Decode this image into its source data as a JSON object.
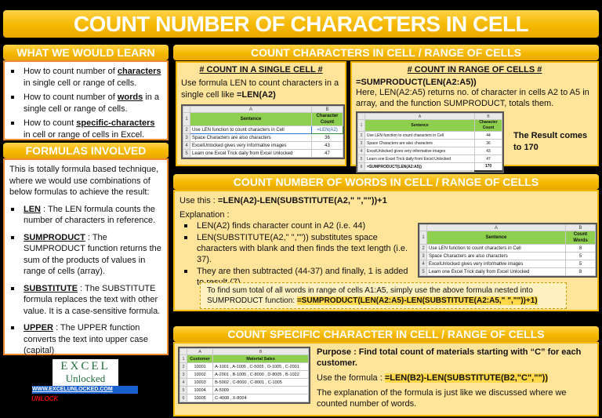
{
  "title": "COUNT NUMBER OF CHARACTERS IN CELL",
  "learn": {
    "header": "WHAT WE WOULD LEARN",
    "items": [
      {
        "pre": "How to count number of ",
        "key": "characters",
        "post": " in single cell or range of cells."
      },
      {
        "pre": "How to count number of ",
        "key": "words",
        "post": " in a single cell or range of cells."
      },
      {
        "pre": "How to count ",
        "key": "specific-characters",
        "post": " in cell or range of cells in Excel."
      }
    ]
  },
  "formulas": {
    "header": "FORMULAS INVOLVED",
    "intro": "This is totally formula based technique, where we would use combinations of below formulas to achieve the result:",
    "items": [
      {
        "key": "LEN",
        "desc": " : The LEN formula counts the number of characters in reference."
      },
      {
        "key": "SUMPRODUCT",
        "desc": " : The SUMPRODUCT function returns the sum of the products of values in range of cells (array)."
      },
      {
        "key": "SUBSTITUTE",
        "desc": " : The SUBSTITUTE formula replaces the text with other value. It is a case-sensitive formula."
      },
      {
        "key": "UPPER",
        "desc": " : The UPPER function converts the text into upper case (capital)"
      }
    ]
  },
  "logo": {
    "line1": "EXCEL",
    "line2": "Unlocked",
    "url": "WWW.EXCELUNLOCKED.COM",
    "tag": "UNLOCK"
  },
  "chars": {
    "header": "COUNT CHARACTERS IN CELL / RANGE OF CELLS",
    "single": {
      "title": "# COUNT IN A SINGLE CELL #",
      "text": "Use formula LEN to count characters in a single cell like ",
      "formula": "=LEN(A2)",
      "table": {
        "col_a": "A",
        "col_b": "B",
        "h_a": "Sentence",
        "h_b1": "Character",
        "h_b2": "Count",
        "rows": [
          {
            "n": "2",
            "a": "Use LEN function to count characters in Cell",
            "b": "=LEN(A2)"
          },
          {
            "n": "3",
            "a": "Space Characters are also characters",
            "b": "36"
          },
          {
            "n": "4",
            "a": "ExcelUnlocked gives very informative images",
            "b": "43"
          },
          {
            "n": "5",
            "a": "Learn one Excel Trick daily from Excel Unlocked",
            "b": "47"
          }
        ]
      }
    },
    "range": {
      "title": "# COUNT IN RANGE OF CELLS #",
      "formula": "=SUMPRODUCT(LEN(A2:A5))",
      "text": "Here, LEN(A2:A5) returns no. of character in cells A2 to A5 in array, and the function SUMPRODUCT, totals them.",
      "result": "The Result comes to 170",
      "table": {
        "col_a": "A",
        "col_b": "B",
        "h_a": "Sentence",
        "h_b1": "Character",
        "h_b2": "Count",
        "rows": [
          {
            "n": "2",
            "a": "Use LEN function to count characters in Cell",
            "b": "44"
          },
          {
            "n": "3",
            "a": "Space Characters are also characters",
            "b": "36"
          },
          {
            "n": "4",
            "a": "ExcelUnlocked gives very informative images",
            "b": "43"
          },
          {
            "n": "5",
            "a": "Learn one Excel Trick daily from Excel Unlocked",
            "b": "47"
          }
        ],
        "total_n": "6",
        "total_a": "=SUMPRODUCT(LEN(A2:A5))",
        "total_b": "170"
      }
    }
  },
  "words": {
    "header": "COUNT NUMBER OF WORDS IN CELL / RANGE OF CELLS",
    "use_label": "Use this : ",
    "use_formula": "=LEN(A2)-LEN(SUBSTITUTE(A2,\" \",\"\"))+1",
    "expl_label": "Explanation :",
    "bullets": [
      "LEN(A2) finds character count in A2 (i.e. 44)",
      "LEN(SUBSTITUTE(A2,\" \",\"\")) substitutes space characters with blank and then finds the text length (i.e. 37).",
      "They are then subtracted (44-37) and finally, 1 is added to result (7)."
    ],
    "note_text": "To find sum total of all words in range of cells A1:A5, simply use the above formula nested into SUMPRODUCT function: ",
    "note_formula": "=SUMPRODUCT(LEN(A2:A5)-LEN(SUBSTITUTE(A2:A5,\" \",\"\"))+1)",
    "table": {
      "col_a": "A",
      "col_b": "B",
      "h_a": "Sentence",
      "h_b1": "Count",
      "h_b2": "Words",
      "rows": [
        {
          "n": "2",
          "a": "Use LEN function to count characters in Cell",
          "b": "8"
        },
        {
          "n": "3",
          "a": "Space Characters are also characters",
          "b": "5"
        },
        {
          "n": "4",
          "a": "ExcelUnlocked gives very informative images",
          "b": "5"
        },
        {
          "n": "5",
          "a": "Learn one Excel Trick daily from Excel Unlocked",
          "b": "8"
        }
      ]
    }
  },
  "specific": {
    "header": "COUNT SPECIFIC CHARACTER IN CELL / RANGE OF CELLS",
    "purpose": "Purpose : Find total count of materials starting with “C” for each customer.",
    "use_label": "Use the formula : ",
    "use_formula": "=LEN(B2)-LEN(SUBSTITUTE(B2,\"C\",\"\"))",
    "expl": "The explanation of the formula is just like we discussed where we counted number of words.",
    "table": {
      "col_a": "A",
      "col_b": "B",
      "h_a": "Customer",
      "h_b": "Material Sales",
      "rows": [
        {
          "n": "2",
          "a": "10001",
          "b": "A-1001 , A-1005 , C-5005 , D-1005 , C-2001"
        },
        {
          "n": "3",
          "a": "10002",
          "b": "A-2001 , B-1005 , C-8000 , D-8005 , B-1022"
        },
        {
          "n": "4",
          "a": "10003",
          "b": "B-5002 , C-8000 , C-8001 , C-1005"
        },
        {
          "n": "5",
          "a": "10004",
          "b": "A-5009"
        },
        {
          "n": "6",
          "a": "10005",
          "b": "C-4008 , X-8004"
        }
      ]
    }
  }
}
